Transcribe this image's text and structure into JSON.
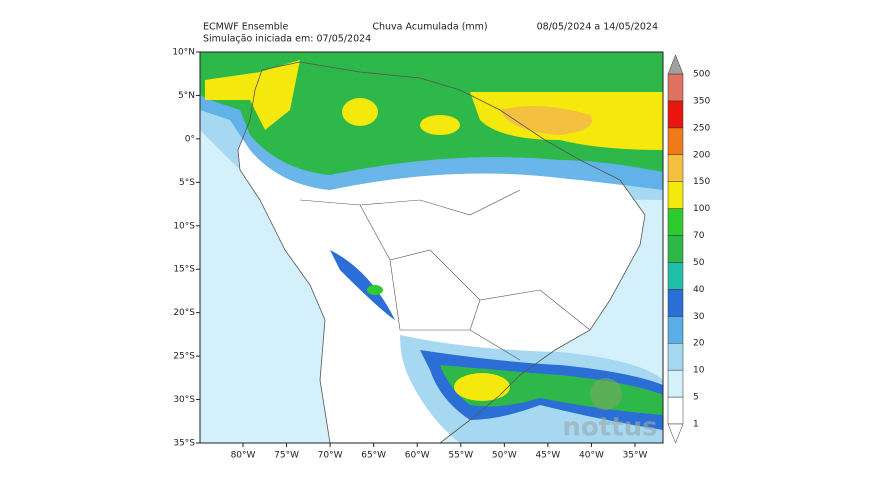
{
  "header": {
    "left_title": "ECMWF Ensemble",
    "left_subtitle": "Simulação iniciada em: 07/05/2024",
    "center_title": "Chuva Acumulada (mm)",
    "right_title": "08/05/2024 a 14/05/2024"
  },
  "map": {
    "lat_labels": [
      "10°N",
      "5°N",
      "0°",
      "5°S",
      "10°S",
      "15°S",
      "20°S",
      "25°S",
      "30°S",
      "35°S"
    ],
    "lon_labels": [
      "80°W",
      "75°W",
      "70°W",
      "65°W",
      "60°W",
      "55°W",
      "50°W",
      "45°W",
      "40°W",
      "35°W"
    ]
  },
  "colorbar": {
    "labels": [
      1,
      5,
      10,
      20,
      30,
      40,
      50,
      70,
      100,
      150,
      200,
      250,
      350,
      500
    ],
    "colors": [
      "#ffffff",
      "#d4f0fa",
      "#a6d8f2",
      "#5aaee8",
      "#2b6fd6",
      "#1ec0a8",
      "#2fb84a",
      "#2ecb2e",
      "#f4e80c",
      "#f4c040",
      "#f07a18",
      "#e8160c",
      "#e07262"
    ],
    "over_color": "#a0a0a0",
    "under_color": "#ffffff"
  },
  "watermark": "nottus"
}
